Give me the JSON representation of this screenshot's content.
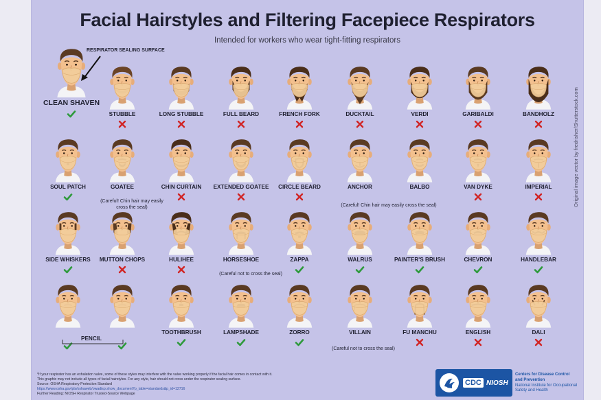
{
  "header": {
    "title": "Facial Hairstyles and Filtering Facepiece Respirators",
    "subtitle": "Intended for workers who wear tight-fitting respirators"
  },
  "side_credit": "Original image vector by fredrisher/Shutterstock.com",
  "sealing_surface_label": "RESPIRATOR SEALING SURFACE",
  "styles": [
    {
      "label": "CLEAN SHAVEN",
      "ok": true,
      "beard": "none",
      "hair": "#5a3a22"
    },
    {
      "label": "STUBBLE",
      "ok": false,
      "beard": "stubble",
      "hair": "#6b4426"
    },
    {
      "label": "LONG STUBBLE",
      "ok": false,
      "beard": "longstubble",
      "hair": "#5a3a22"
    },
    {
      "label": "FULL BEARD",
      "ok": false,
      "beard": "full",
      "hair": "#4a2e1a"
    },
    {
      "label": "FRENCH FORK",
      "ok": false,
      "beard": "fork",
      "hair": "#4a2e1a"
    },
    {
      "label": "DUCKTAIL",
      "ok": false,
      "beard": "ducktail",
      "hair": "#5a3a22"
    },
    {
      "label": "VERDI",
      "ok": false,
      "beard": "verdi",
      "hair": "#4a2e1a"
    },
    {
      "label": "GARIBALDI",
      "ok": false,
      "beard": "garibaldi",
      "hair": "#5a3a22"
    },
    {
      "label": "BANDHOLZ",
      "ok": false,
      "beard": "bandholz",
      "hair": "#4a2e1a"
    },
    {
      "label": "SOUL PATCH",
      "ok": true,
      "beard": "soulpatch",
      "hair": "#5a3a22"
    },
    {
      "label": "GOATEE",
      "ok": null,
      "beard": "goatee",
      "hair": "#5a3a22",
      "note": "(Careful! Chin hair may easily cross the seal)"
    },
    {
      "label": "CHIN CURTAIN",
      "ok": false,
      "beard": "chincurtain",
      "hair": "#4a2e1a"
    },
    {
      "label": "EXTENDED GOATEE",
      "ok": false,
      "beard": "extgoatee",
      "hair": "#5a3a22"
    },
    {
      "label": "CIRCLE BEARD",
      "ok": false,
      "beard": "circle",
      "hair": "#5a3a22"
    },
    {
      "label": "ANCHOR",
      "ok": null,
      "beard": "anchor",
      "hair": "#5a3a22"
    },
    {
      "label": "BALBO",
      "ok": null,
      "beard": "balbo",
      "hair": "#5a3a22"
    },
    {
      "label": "VAN DYKE",
      "ok": false,
      "beard": "vandyke",
      "hair": "#5a3a22"
    },
    {
      "label": "IMPERIAL",
      "ok": false,
      "beard": "imperial",
      "hair": "#5a3a22"
    },
    {
      "label": "SIDE WHISKERS",
      "ok": true,
      "beard": "whiskers",
      "hair": "#5a3a22"
    },
    {
      "label": "MUTTON CHOPS",
      "ok": false,
      "beard": "mutton",
      "hair": "#5a3a22"
    },
    {
      "label": "HULIHEE",
      "ok": false,
      "beard": "hulihee",
      "hair": "#4a2e1a"
    },
    {
      "label": "HORSESHOE",
      "ok": null,
      "beard": "horseshoe",
      "hair": "#5a3a22",
      "note": "(Careful not to cross the seal)"
    },
    {
      "label": "ZAPPA",
      "ok": true,
      "beard": "zappa",
      "hair": "#5a3a22"
    },
    {
      "label": "WALRUS",
      "ok": true,
      "beard": "walrus",
      "hair": "#5a3a22"
    },
    {
      "label": "PAINTER'S BRUSH",
      "ok": true,
      "beard": "painter",
      "hair": "#5a3a22"
    },
    {
      "label": "CHEVRON",
      "ok": true,
      "beard": "chevron",
      "hair": "#5a3a22"
    },
    {
      "label": "HANDLEBAR",
      "ok": true,
      "beard": "handlebar",
      "hair": "#5a3a22"
    },
    {
      "label": "",
      "ok": true,
      "beard": "pencil",
      "hair": "#5a3a22"
    },
    {
      "label": "",
      "ok": true,
      "beard": "pencil2",
      "hair": "#5a3a22"
    },
    {
      "label": "TOOTHBRUSH",
      "ok": true,
      "beard": "toothbrush",
      "hair": "#5a3a22"
    },
    {
      "label": "LAMPSHADE",
      "ok": true,
      "beard": "lampshade",
      "hair": "#5a3a22"
    },
    {
      "label": "ZORRO",
      "ok": true,
      "beard": "zorro",
      "hair": "#5a3a22"
    },
    {
      "label": "VILLAIN",
      "ok": null,
      "beard": "villain",
      "hair": "#5a3a22",
      "note": "(Careful not to cross the seal)"
    },
    {
      "label": "FU MANCHU",
      "ok": false,
      "beard": "fumanchu",
      "hair": "#5a3a22"
    },
    {
      "label": "ENGLISH",
      "ok": false,
      "beard": "english",
      "hair": "#5a3a22"
    },
    {
      "label": "DALI",
      "ok": false,
      "beard": "dali",
      "hair": "#5a3a22"
    }
  ],
  "anchor_balbo_note": "(Careful! Chin hair may easily cross the seal)",
  "pencil_label": "PENCIL",
  "footer": {
    "line1": "*If your respirator has an exhalation valve, some of these styles may interfere with the valve working properly if the facial hair comes in contact with it.",
    "line2": "This graphic may not include all types of facial hairstyles. For any style, hair should not cross under the respirator sealing surface.",
    "source_label": "Source: OSHA Respiratory Protection Standard",
    "source_url": "https://www.osha.gov/pls/oshaweb/owadisp.show_document?p_table=standards&p_id=12716",
    "further_reading": "Further Reading: NIOSH Respirator Trusted-Source Webpage"
  },
  "logos": {
    "cdc": "CDC",
    "niosh": "NIOSH",
    "org_line1": "Centers for Disease Control",
    "org_line2": "and Prevention",
    "org_line3": "National Institute for Occupational",
    "org_line4": "Safety and Health"
  },
  "colors": {
    "background": "#c5c3e8",
    "skin": "#f3c08e",
    "mask": "#f2cd9b",
    "shirt": "#f4f4f6",
    "check": "#2e9a3c",
    "cross": "#d12424"
  }
}
